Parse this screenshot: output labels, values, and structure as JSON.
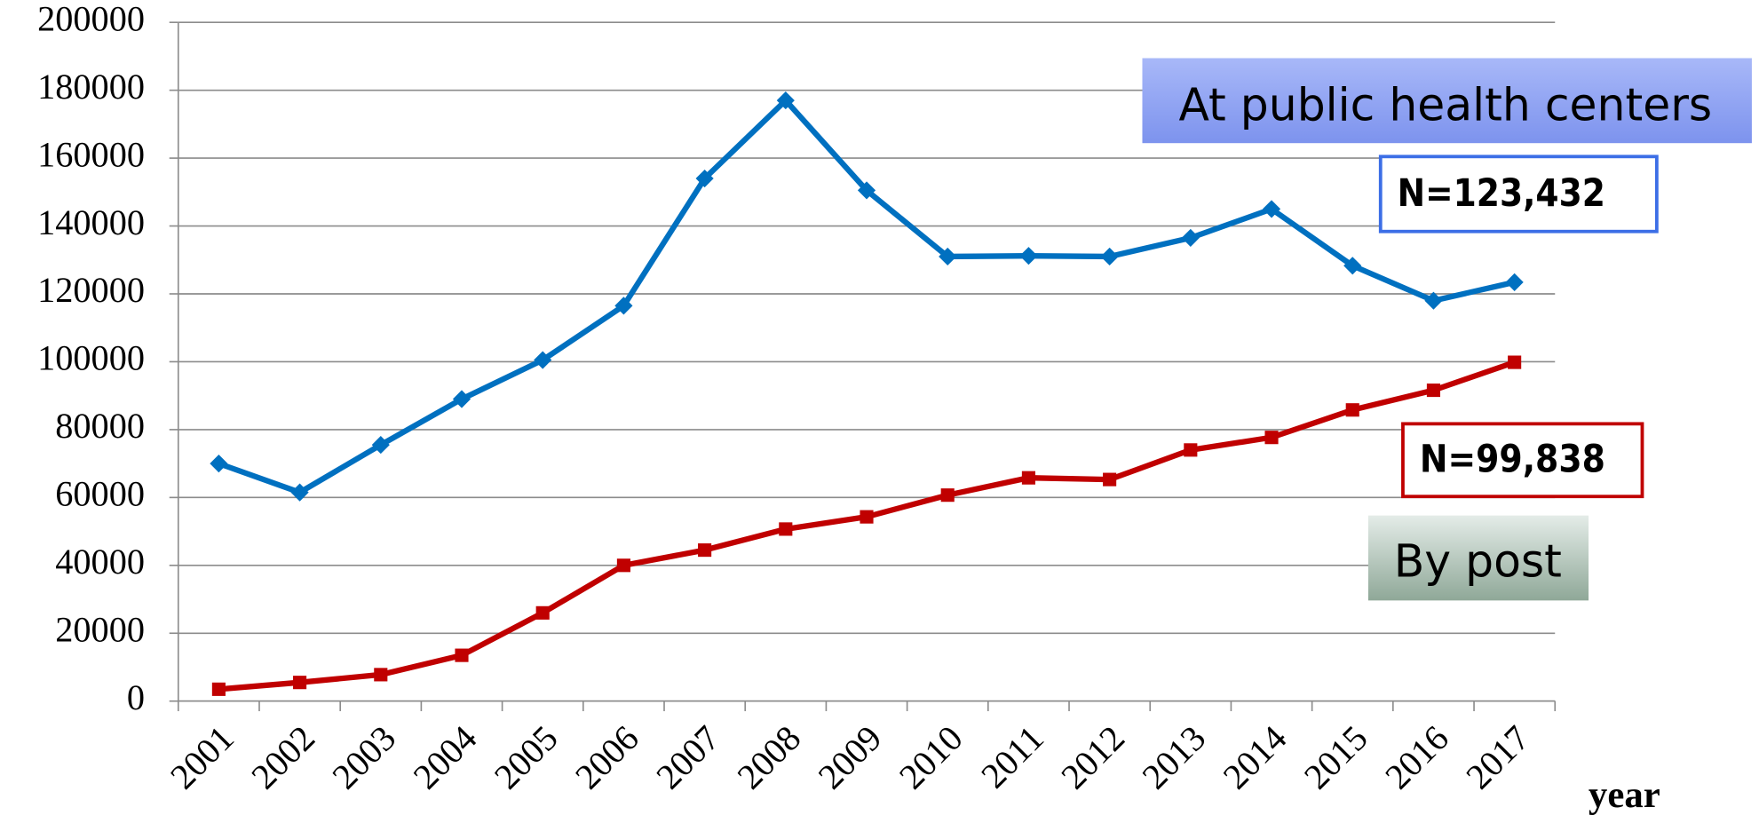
{
  "chart_data": {
    "type": "line",
    "categories": [
      "2001",
      "2002",
      "2003",
      "2004",
      "2005",
      "2006",
      "2007",
      "2008",
      "2009",
      "2010",
      "2011",
      "2012",
      "2013",
      "2014",
      "2015",
      "2016",
      "2017"
    ],
    "series": [
      {
        "name": "At public health centers",
        "color": "#0070c0",
        "values": [
          70000,
          61500,
          75500,
          89000,
          100500,
          116500,
          154000,
          177000,
          150500,
          131000,
          131200,
          131000,
          136500,
          145000,
          128300,
          118000,
          123432
        ]
      },
      {
        "name": "By post",
        "color": "#c00000",
        "values": [
          3500,
          5500,
          7800,
          13500,
          26000,
          40000,
          44500,
          50700,
          54300,
          60700,
          65800,
          65300,
          74000,
          77700,
          85800,
          91600,
          99838
        ]
      }
    ],
    "annotations": [
      "N=123,432",
      "N=99,838"
    ],
    "x_label": "year",
    "ylim": [
      0,
      200000
    ],
    "yticks": [
      0,
      20000,
      40000,
      60000,
      80000,
      100000,
      120000,
      140000,
      160000,
      180000,
      200000
    ],
    "grid": true
  }
}
